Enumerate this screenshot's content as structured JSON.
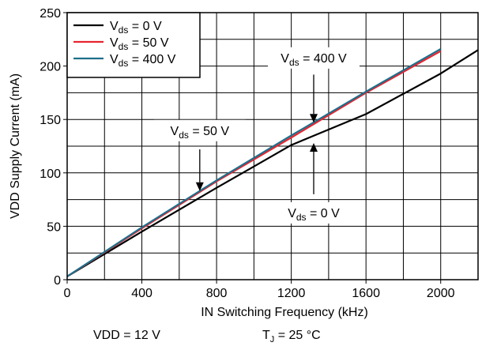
{
  "chart_data": {
    "type": "line",
    "xlabel": "IN Switching Frequency (kHz)",
    "ylabel": "VDD Supply Current (mA)",
    "xlim": [
      0,
      2200
    ],
    "ylim": [
      0,
      250
    ],
    "x_ticks": [
      0,
      400,
      800,
      1200,
      1600,
      2000
    ],
    "y_ticks": [
      0,
      50,
      100,
      150,
      200,
      250
    ],
    "grid": true,
    "legend_position": "top-left",
    "series": [
      {
        "name_prefix": "V",
        "name_sub": "ds",
        "name_suffix": " = 0 V",
        "color": "#000000",
        "x": [
          0,
          400,
          800,
          1000,
          1200,
          1600,
          2000,
          2200
        ],
        "y": [
          3,
          45,
          86,
          106,
          126,
          155,
          193,
          215
        ]
      },
      {
        "name_prefix": "V",
        "name_sub": "ds",
        "name_suffix": " = 50 V",
        "color": "#e8242e",
        "x": [
          0,
          400,
          800,
          1200,
          1600,
          2000
        ],
        "y": [
          3,
          48,
          92,
          133,
          175,
          214
        ]
      },
      {
        "name_prefix": "V",
        "name_sub": "ds",
        "name_suffix": " = 400 V",
        "color": "#1f6f8b",
        "x": [
          0,
          400,
          800,
          1200,
          1600,
          2000
        ],
        "y": [
          3,
          49,
          93,
          135,
          176,
          216
        ]
      }
    ],
    "annotations": [
      {
        "prefix": "V",
        "sub": "ds",
        "suffix": " = 400 V",
        "arrow_x": 1320,
        "arrow_from_y": 192,
        "arrow_to_y": 147,
        "label_x": 1320,
        "label_y": 205
      },
      {
        "prefix": "V",
        "sub": "ds",
        "suffix": " = 50 V",
        "arrow_x": 710,
        "arrow_from_y": 122,
        "arrow_to_y": 83,
        "label_x": 710,
        "label_y": 137
      },
      {
        "prefix": "V",
        "sub": "ds",
        "suffix": " = 0 V",
        "arrow_x": 1320,
        "arrow_from_y": 80,
        "arrow_to_y": 128,
        "label_x": 1320,
        "label_y": 60
      }
    ]
  },
  "conditions": {
    "vdd": "VDD = 12 V",
    "tj_prefix": "T",
    "tj_sub": "J",
    "tj_suffix": " = 25 °C"
  }
}
